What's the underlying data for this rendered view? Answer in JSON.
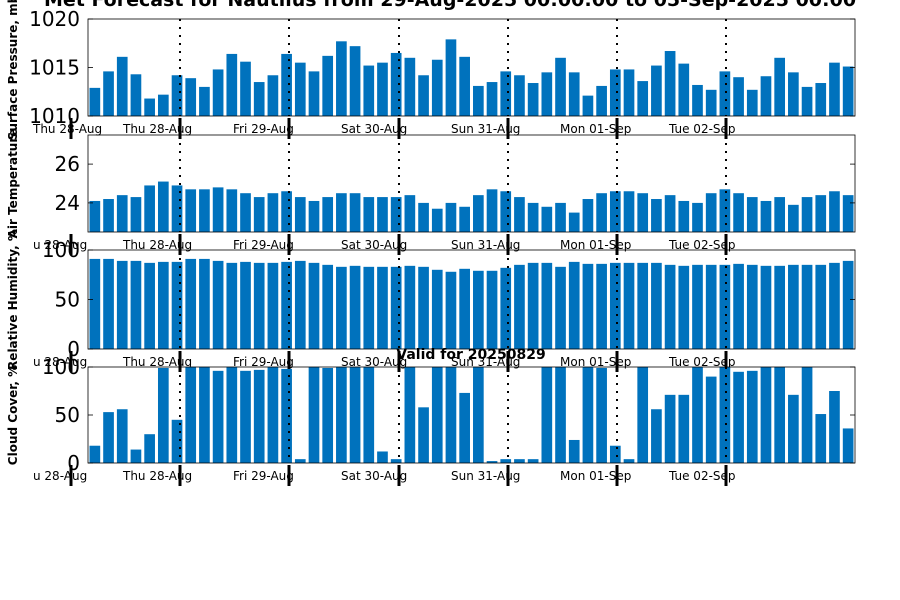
{
  "title": "Met Forecast for Nautilus from 29-Aug-2025 00:00:00 to 05-Sep-2025 00:00",
  "valid_label": "Valid for 20250829",
  "bar_color": "#0072bd",
  "chart_data": [
    {
      "type": "bar",
      "ylabel": "Surface Pressure, mb",
      "ylim": [
        1010,
        1020
      ],
      "yticks": [
        1010,
        1015,
        1020
      ],
      "day_labels": [
        "Thu 28-Aug",
        "Thu 28-Aug",
        "Fri 29-Aug",
        "Sat 30-Aug",
        "Sun 31-Aug",
        "Mon 01-Sep",
        "Tue 02-Sep"
      ],
      "values": [
        1012.9,
        1014.6,
        1016.1,
        1014.3,
        1011.8,
        1012.2,
        1014.2,
        1013.9,
        1013.0,
        1014.8,
        1016.4,
        1015.6,
        1013.5,
        1014.2,
        1016.4,
        1015.5,
        1014.6,
        1016.2,
        1017.7,
        1017.2,
        1015.2,
        1015.5,
        1016.5,
        1016.0,
        1014.2,
        1015.8,
        1017.9,
        1016.1,
        1013.1,
        1013.5,
        1014.6,
        1014.2,
        1013.4,
        1014.5,
        1016.0,
        1014.5,
        1012.1,
        1013.1,
        1014.8,
        1014.8,
        1013.6,
        1015.2,
        1016.7,
        1015.4,
        1013.2,
        1012.7,
        1014.6,
        1014.0,
        1012.7,
        1014.1,
        1016.0,
        1014.5,
        1013.0,
        1013.4,
        1015.5,
        1015.1
      ]
    },
    {
      "type": "bar",
      "ylabel": "Air Temperature",
      "ylim": [
        22.5,
        27.5
      ],
      "yticks": [
        24,
        26
      ],
      "day_labels": [
        "u 28-Aug",
        "Thu 28-Aug",
        "Fri 29-Aug",
        "Sat 30-Aug",
        "Sun 31-Aug",
        "Mon 01-Sep",
        "Tue 02-Sep"
      ],
      "values": [
        24.1,
        24.2,
        24.4,
        24.3,
        24.9,
        25.1,
        24.9,
        24.7,
        24.7,
        24.8,
        24.7,
        24.5,
        24.3,
        24.5,
        24.6,
        24.3,
        24.1,
        24.3,
        24.5,
        24.5,
        24.3,
        24.3,
        24.3,
        24.4,
        24.0,
        23.7,
        24.0,
        23.8,
        24.4,
        24.7,
        24.6,
        24.3,
        24.0,
        23.8,
        24.0,
        23.5,
        24.2,
        24.5,
        24.6,
        24.6,
        24.5,
        24.2,
        24.4,
        24.1,
        24.0,
        24.5,
        24.7,
        24.5,
        24.3,
        24.1,
        24.3,
        23.9,
        24.3,
        24.4,
        24.6,
        24.4
      ]
    },
    {
      "type": "bar",
      "ylabel": "Relative Humidity, %",
      "ylim": [
        0,
        100
      ],
      "yticks": [
        0,
        50,
        100
      ],
      "day_labels": [
        "u 28-Aug",
        "Thu 28-Aug",
        "Fri 29-Aug",
        "Sat 30-Aug",
        "Sun 31-Aug",
        "Mon 01-Sep",
        "Tue 02-Sep"
      ],
      "values": [
        91,
        91,
        89,
        89,
        87,
        88,
        88,
        91,
        91,
        89,
        87,
        88,
        87,
        87,
        88,
        89,
        87,
        85,
        83,
        84,
        83,
        83,
        83,
        84,
        83,
        80,
        78,
        81,
        79,
        79,
        82,
        85,
        87,
        87,
        83,
        88,
        86,
        86,
        87,
        87,
        87,
        87,
        85,
        84,
        85,
        85,
        85,
        86,
        85,
        84,
        84,
        85,
        85,
        85,
        87,
        89
      ]
    },
    {
      "type": "bar",
      "ylabel": "Cloud Cover, %",
      "ylim": [
        0,
        100
      ],
      "yticks": [
        0,
        50,
        100
      ],
      "day_labels": [
        "u 28-Aug",
        "Thu 28-Aug",
        "Fri 29-Aug",
        "Sat 30-Aug",
        "Sun 31-Aug",
        "Mon 01-Sep",
        "Tue 02-Sep"
      ],
      "values": [
        18,
        53,
        56,
        14,
        30,
        99,
        45,
        100,
        100,
        96,
        100,
        96,
        97,
        100,
        98,
        4,
        100,
        99,
        100,
        100,
        100,
        12,
        4,
        100,
        58,
        100,
        100,
        73,
        100,
        2,
        4,
        4,
        4,
        100,
        100,
        24,
        100,
        99,
        18,
        4,
        100,
        56,
        71,
        71,
        100,
        90,
        100,
        95,
        96,
        100,
        100,
        71,
        100,
        51,
        75,
        36
      ]
    }
  ]
}
